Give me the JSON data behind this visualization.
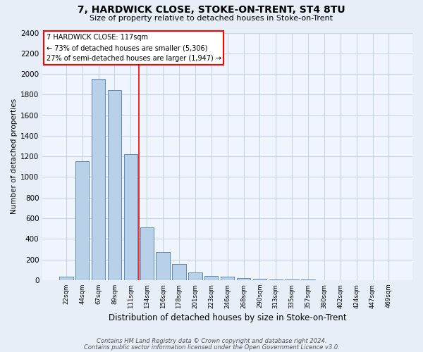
{
  "title": "7, HARDWICK CLOSE, STOKE-ON-TRENT, ST4 8TU",
  "subtitle": "Size of property relative to detached houses in Stoke-on-Trent",
  "xlabel": "Distribution of detached houses by size in Stoke-on-Trent",
  "ylabel": "Number of detached properties",
  "categories": [
    "22sqm",
    "44sqm",
    "67sqm",
    "89sqm",
    "111sqm",
    "134sqm",
    "156sqm",
    "178sqm",
    "201sqm",
    "223sqm",
    "246sqm",
    "268sqm",
    "290sqm",
    "313sqm",
    "335sqm",
    "357sqm",
    "380sqm",
    "402sqm",
    "424sqm",
    "447sqm",
    "469sqm"
  ],
  "values": [
    30,
    1150,
    1950,
    1840,
    1220,
    510,
    270,
    155,
    75,
    40,
    30,
    18,
    12,
    8,
    5,
    3,
    2,
    1,
    0,
    0,
    0
  ],
  "bar_color": "#b8d0e8",
  "bar_edge_color": "#5a8ab5",
  "vline_x": 4.5,
  "vline_color": "red",
  "ylim": [
    0,
    2400
  ],
  "yticks": [
    0,
    200,
    400,
    600,
    800,
    1000,
    1200,
    1400,
    1600,
    1800,
    2000,
    2200,
    2400
  ],
  "annotation_title": "7 HARDWICK CLOSE: 117sqm",
  "annotation_line1": "← 73% of detached houses are smaller (5,306)",
  "annotation_line2": "27% of semi-detached houses are larger (1,947) →",
  "annotation_box_color": "red",
  "footer1": "Contains HM Land Registry data © Crown copyright and database right 2024.",
  "footer2": "Contains public sector information licensed under the Open Government Licence v3.0.",
  "bg_color": "#e8eef8",
  "plot_bg_color": "#f0f4fc",
  "grid_color": "#c8d4e8"
}
